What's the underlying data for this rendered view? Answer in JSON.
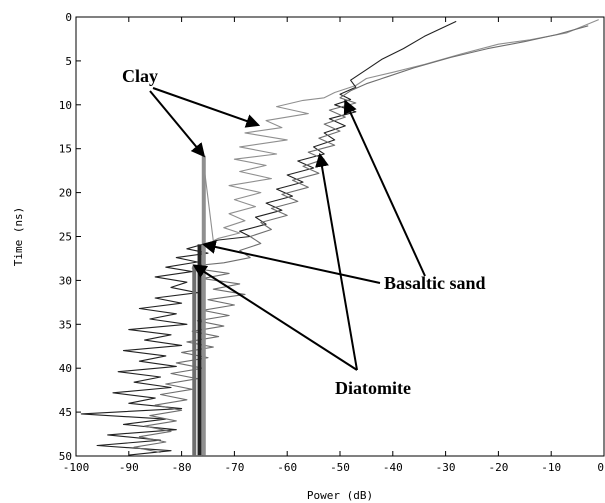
{
  "chart_data": {
    "type": "line",
    "title": "",
    "xlabel": "Power (dB)",
    "ylabel": "Time (ns)",
    "xlim": [
      -100,
      0
    ],
    "ylim": [
      50,
      0
    ],
    "x_ticks": [
      "-100",
      "-90",
      "-80",
      "-70",
      "-60",
      "-50",
      "-40",
      "-30",
      "-20",
      "-10",
      "0"
    ],
    "y_ticks": [
      "0",
      "5",
      "10",
      "15",
      "20",
      "25",
      "30",
      "35",
      "40",
      "45",
      "50"
    ],
    "grid": false,
    "legend": "none",
    "colors": {
      "clay": "#8f8f8f",
      "basaltic_sand": "#222222",
      "diatomite": "#6e6e6e",
      "arrow": "#000000"
    },
    "series": [
      {
        "key": "clay",
        "points": [
          [
            -1,
            0.3
          ],
          [
            -7,
            1.8
          ],
          [
            -14,
            2.6
          ],
          [
            -20,
            3.1
          ],
          [
            -27,
            4.2
          ],
          [
            -34,
            5.4
          ],
          [
            -40,
            6.3
          ],
          [
            -45,
            7.0
          ],
          [
            -47,
            7.8
          ],
          [
            -51,
            8.6
          ],
          [
            -53,
            9.2
          ],
          [
            -57,
            9.5
          ],
          [
            -62,
            10.2
          ],
          [
            -56,
            11.0
          ],
          [
            -64,
            11.8
          ],
          [
            -61,
            12.6
          ],
          [
            -68,
            13.2
          ],
          [
            -60,
            14.0
          ],
          [
            -69,
            14.8
          ],
          [
            -62,
            15.6
          ],
          [
            -70,
            16.2
          ],
          [
            -64,
            16.9
          ],
          [
            -69,
            17.6
          ],
          [
            -63,
            18.4
          ],
          [
            -71,
            19.2
          ],
          [
            -65,
            20.0
          ],
          [
            -70,
            20.8
          ],
          [
            -66,
            21.6
          ],
          [
            -71,
            22.4
          ],
          [
            -68,
            23.2
          ],
          [
            -72,
            24.0
          ],
          [
            -69,
            24.6
          ],
          [
            -73,
            25.2
          ],
          [
            -74,
            25.5
          ],
          [
            -76,
            15.8
          ],
          [
            -76,
            49.9
          ]
        ]
      },
      {
        "key": "basaltic_sand",
        "points": [
          [
            -28,
            0.5
          ],
          [
            -34,
            2.2
          ],
          [
            -38,
            3.6
          ],
          [
            -42,
            4.8
          ],
          [
            -45,
            6.0
          ],
          [
            -48,
            7.2
          ],
          [
            -47,
            8.0
          ],
          [
            -50,
            8.8
          ],
          [
            -48,
            9.4
          ],
          [
            -51,
            10.0
          ],
          [
            -47,
            10.8
          ],
          [
            -52,
            11.6
          ],
          [
            -49,
            12.4
          ],
          [
            -53,
            13.2
          ],
          [
            -51,
            14.0
          ],
          [
            -55,
            14.8
          ],
          [
            -53,
            15.6
          ],
          [
            -58,
            16.4
          ],
          [
            -55,
            17.2
          ],
          [
            -60,
            18.0
          ],
          [
            -57,
            18.8
          ],
          [
            -62,
            19.6
          ],
          [
            -59,
            20.4
          ],
          [
            -64,
            21.2
          ],
          [
            -61,
            22.0
          ],
          [
            -66,
            22.8
          ],
          [
            -64,
            23.6
          ],
          [
            -69,
            24.4
          ],
          [
            -67,
            25.0
          ],
          [
            -73,
            25.4
          ],
          [
            -76,
            25.9
          ],
          [
            -79,
            26.4
          ],
          [
            -75,
            26.9
          ],
          [
            -81,
            27.4
          ],
          [
            -77,
            27.9
          ],
          [
            -83,
            28.5
          ],
          [
            -78,
            29.0
          ],
          [
            -85,
            29.6
          ],
          [
            -79,
            30.2
          ],
          [
            -82,
            30.8
          ],
          [
            -77,
            31.4
          ],
          [
            -85,
            32.0
          ],
          [
            -80,
            32.6
          ],
          [
            -88,
            33.2
          ],
          [
            -81,
            33.8
          ],
          [
            -86,
            34.4
          ],
          [
            -79,
            35.0
          ],
          [
            -90,
            35.6
          ],
          [
            -82,
            36.2
          ],
          [
            -87,
            36.8
          ],
          [
            -80,
            37.4
          ],
          [
            -91,
            38.0
          ],
          [
            -83,
            38.6
          ],
          [
            -88,
            39.2
          ],
          [
            -81,
            39.8
          ],
          [
            -92,
            40.4
          ],
          [
            -84,
            41.0
          ],
          [
            -89,
            41.6
          ],
          [
            -82,
            42.2
          ],
          [
            -93,
            42.8
          ],
          [
            -85,
            43.4
          ],
          [
            -90,
            44.0
          ],
          [
            -80,
            44.6
          ],
          [
            -99,
            45.2
          ],
          [
            -83,
            45.8
          ],
          [
            -91,
            46.4
          ],
          [
            -81,
            47.0
          ],
          [
            -94,
            47.6
          ],
          [
            -84,
            48.2
          ],
          [
            -96,
            48.8
          ],
          [
            -82,
            49.4
          ],
          [
            -90,
            49.9
          ]
        ]
      },
      {
        "key": "diatomite",
        "points": [
          [
            -3,
            1.0
          ],
          [
            -9,
            2.0
          ],
          [
            -15,
            2.8
          ],
          [
            -22,
            3.6
          ],
          [
            -29,
            4.6
          ],
          [
            -36,
            5.8
          ],
          [
            -41,
            6.8
          ],
          [
            -45,
            7.6
          ],
          [
            -48,
            8.4
          ],
          [
            -50,
            9.2
          ],
          [
            -47,
            9.8
          ],
          [
            -52,
            10.6
          ],
          [
            -49,
            11.4
          ],
          [
            -53,
            12.2
          ],
          [
            -50,
            13.0
          ],
          [
            -54,
            13.8
          ],
          [
            -51,
            14.6
          ],
          [
            -56,
            15.4
          ],
          [
            -53,
            16.2
          ],
          [
            -57,
            17.0
          ],
          [
            -54,
            17.8
          ],
          [
            -59,
            18.6
          ],
          [
            -56,
            19.4
          ],
          [
            -61,
            20.2
          ],
          [
            -58,
            21.0
          ],
          [
            -63,
            21.8
          ],
          [
            -60,
            22.6
          ],
          [
            -65,
            23.4
          ],
          [
            -63,
            24.2
          ],
          [
            -67,
            25.0
          ],
          [
            -65,
            25.8
          ],
          [
            -69,
            26.6
          ],
          [
            -67,
            27.4
          ],
          [
            -72,
            28.0
          ],
          [
            -77,
            28.3
          ],
          [
            -78,
            28.6
          ],
          [
            -71,
            29.2
          ],
          [
            -76,
            29.8
          ],
          [
            -69,
            30.4
          ],
          [
            -74,
            31.0
          ],
          [
            -68,
            31.6
          ],
          [
            -75,
            32.2
          ],
          [
            -70,
            32.8
          ],
          [
            -76,
            33.4
          ],
          [
            -71,
            34.0
          ],
          [
            -77,
            34.6
          ],
          [
            -72,
            35.2
          ],
          [
            -78,
            35.8
          ],
          [
            -73,
            36.4
          ],
          [
            -79,
            37.0
          ],
          [
            -74,
            37.6
          ],
          [
            -80,
            38.2
          ],
          [
            -75,
            38.8
          ],
          [
            -81,
            39.4
          ],
          [
            -76,
            40.0
          ],
          [
            -82,
            40.6
          ],
          [
            -77,
            41.2
          ],
          [
            -83,
            41.8
          ],
          [
            -78,
            42.4
          ],
          [
            -84,
            43.0
          ],
          [
            -79,
            43.6
          ],
          [
            -85,
            44.2
          ],
          [
            -80,
            44.8
          ],
          [
            -86,
            45.4
          ],
          [
            -81,
            46.0
          ],
          [
            -87,
            46.6
          ],
          [
            -82,
            47.2
          ],
          [
            -88,
            47.8
          ],
          [
            -83,
            48.4
          ],
          [
            -89,
            49.0
          ],
          [
            -84,
            49.6
          ]
        ]
      }
    ],
    "vertical_segments": [
      {
        "x": -75.8,
        "y1": 15.8,
        "y2": 49.9,
        "key": "clay"
      },
      {
        "x": -76.6,
        "y1": 25.9,
        "y2": 49.9,
        "key": "basaltic_sand"
      },
      {
        "x": -77.6,
        "y1": 28.3,
        "y2": 49.9,
        "key": "diatomite"
      }
    ],
    "annotations": [
      {
        "label": "Clay",
        "arrow_targets": [
          [
            -65.5,
            12.3
          ],
          [
            -75.8,
            15.8
          ]
        ]
      },
      {
        "label": "Basaltic sand",
        "arrow_targets": [
          [
            -75.8,
            25.9
          ],
          [
            -49.0,
            9.6
          ]
        ]
      },
      {
        "label": "Diatomite",
        "arrow_targets": [
          [
            -77.6,
            28.3
          ],
          [
            -53.8,
            15.7
          ]
        ]
      }
    ]
  }
}
